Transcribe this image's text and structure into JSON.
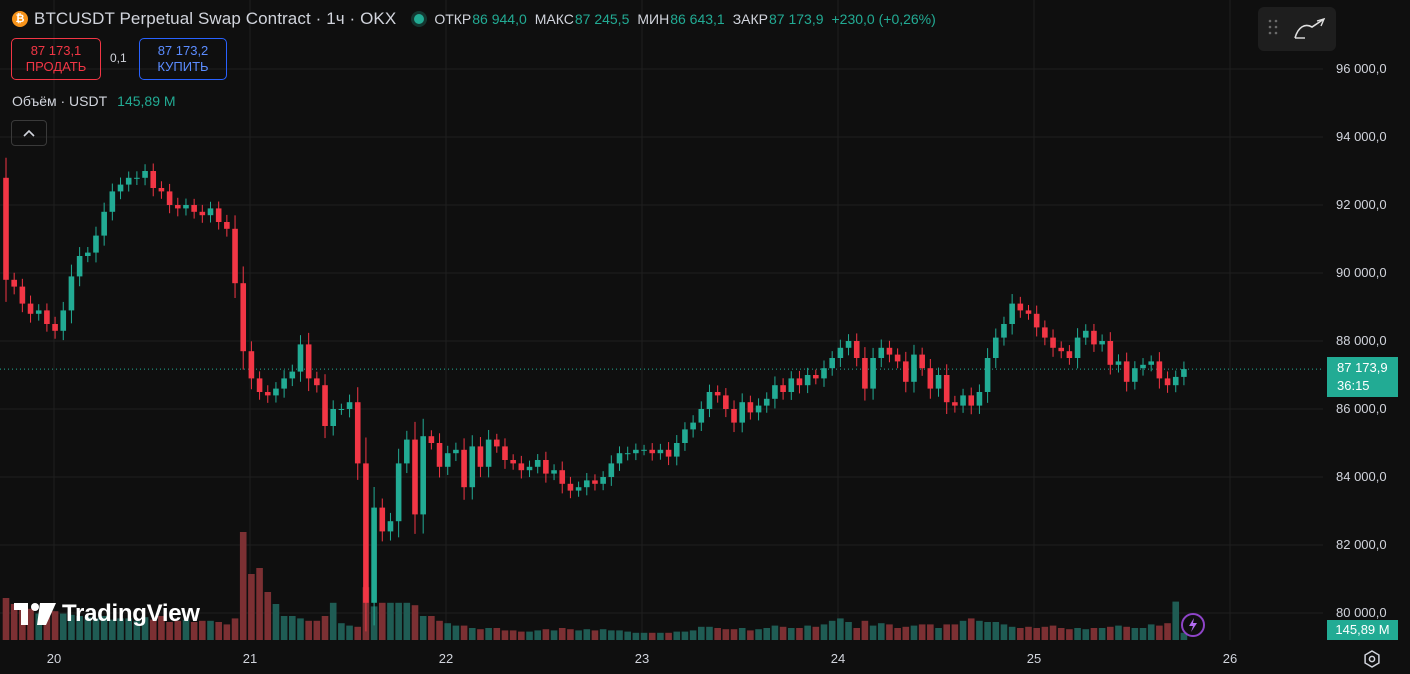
{
  "header": {
    "coin_glyph": "₿",
    "title": "BTCUSDT Perpetual Swap Contract · 1ч · OKX",
    "open_label": "ОТКР",
    "open_value": "86 944,0",
    "high_label": "МАКС",
    "high_value": "87 245,5",
    "low_label": "МИН",
    "low_value": "86 643,1",
    "close_label": "ЗАКР",
    "close_value": "87 173,9",
    "change": "+230,0 (+0,26%)"
  },
  "trade": {
    "sell_price": "87 173,1",
    "sell_label": "ПРОДАТЬ",
    "spread": "0,1",
    "buy_price": "87 173,2",
    "buy_label": "КУПИТЬ"
  },
  "volume_legend": {
    "label": "Объём · USDT",
    "value": "145,89 M"
  },
  "price_tag": {
    "price": "87 173,9",
    "countdown": "36:15"
  },
  "volume_tag": "145,89 M",
  "logo_text": "TradingView",
  "colors": {
    "up": "#22ab94",
    "down": "#f23645",
    "up_vol": "#1f5c54",
    "down_vol": "#7c3033",
    "background": "#0f0f0f",
    "grid": "#1f1f1f"
  },
  "icons": [
    "bitcoin-icon",
    "live-status-icon",
    "chevron-up-icon",
    "drag-handle-icon",
    "drawing-tool-icon",
    "flash-icon",
    "gear-icon",
    "tradingview-logo-icon"
  ],
  "chart_data": {
    "type": "candlestick",
    "symbol": "BTCUSDT",
    "interval": "1h",
    "ylim": [
      79000,
      96500
    ],
    "y_ticks": [
      "96 000,0",
      "94 000,0",
      "92 000,0",
      "90 000,0",
      "88 000,0",
      "86 000,0",
      "84 000,0",
      "82 000,0",
      "80 000,0"
    ],
    "x_ticks": [
      "20",
      "21",
      "22",
      "23",
      "24",
      "25",
      "26"
    ],
    "grid": true,
    "last_price": 87173.9,
    "closes": [
      89800,
      89600,
      89100,
      88800,
      88900,
      88500,
      88300,
      88900,
      89900,
      90500,
      90600,
      91100,
      91800,
      92400,
      92600,
      92800,
      92800,
      93000,
      92500,
      92400,
      92000,
      91900,
      92000,
      91800,
      91700,
      91900,
      91500,
      91300,
      89700,
      87700,
      86900,
      86500,
      86400,
      86600,
      86900,
      87100,
      87900,
      86900,
      86700,
      85500,
      86000,
      86000,
      86200,
      84400,
      80300,
      83100,
      82400,
      82700,
      84400,
      85100,
      82900,
      85200,
      85000,
      84300,
      84700,
      84800,
      83700,
      84900,
      84300,
      85100,
      84900,
      84500,
      84400,
      84200,
      84300,
      84500,
      84100,
      84200,
      83800,
      83600,
      83700,
      83900,
      83800,
      84000,
      84400,
      84700,
      84700,
      84800,
      84800,
      84700,
      84800,
      84600,
      85000,
      85400,
      85600,
      86000,
      86500,
      86400,
      86000,
      85600,
      86200,
      85900,
      86100,
      86300,
      86700,
      86500,
      86900,
      86700,
      87000,
      86900,
      87200,
      87500,
      87800,
      88000,
      87500,
      86600,
      87500,
      87800,
      87600,
      87400,
      86800,
      87600,
      87200,
      86600,
      87000,
      86200,
      86100,
      86400,
      86100,
      86500,
      87500,
      88100,
      88500,
      89100,
      88900,
      88800,
      88400,
      88100,
      87800,
      87700,
      87500,
      88100,
      88300,
      87900,
      88000,
      87300,
      87400,
      86800,
      87200,
      87300,
      87400,
      86900,
      86700,
      86944,
      87173.9
    ],
    "volumes": [
      3.5,
      3.0,
      2.8,
      2.6,
      2.2,
      2.0,
      2.4,
      2.2,
      2.1,
      2.0,
      1.9,
      1.8,
      2.0,
      1.7,
      1.8,
      1.8,
      1.6,
      1.9,
      1.7,
      2.0,
      1.5,
      1.6,
      1.7,
      1.5,
      1.6,
      1.6,
      1.5,
      1.3,
      1.8,
      9.0,
      5.5,
      6.0,
      4.0,
      3.0,
      2.0,
      2.0,
      1.8,
      1.6,
      1.6,
      2.0,
      3.1,
      1.4,
      1.2,
      1.1,
      4.4,
      2.8,
      3.1,
      3.1,
      3.1,
      3.1,
      2.9,
      2.0,
      2.0,
      1.6,
      1.4,
      1.2,
      1.2,
      1.0,
      0.9,
      1.0,
      1.0,
      0.8,
      0.8,
      0.7,
      0.7,
      0.8,
      0.9,
      0.8,
      1.0,
      0.9,
      0.8,
      0.9,
      0.8,
      0.9,
      0.8,
      0.8,
      0.7,
      0.6,
      0.6,
      0.6,
      0.6,
      0.6,
      0.7,
      0.7,
      0.8,
      1.1,
      1.1,
      1.0,
      0.9,
      0.9,
      1.0,
      0.8,
      0.9,
      1.0,
      1.2,
      1.1,
      1.0,
      1.0,
      1.2,
      1.1,
      1.3,
      1.6,
      1.8,
      1.5,
      1.0,
      1.6,
      1.2,
      1.4,
      1.3,
      1.0,
      1.1,
      1.2,
      1.3,
      1.3,
      1.0,
      1.3,
      1.3,
      1.6,
      1.8,
      1.6,
      1.5,
      1.5,
      1.3,
      1.1,
      1.0,
      1.1,
      1.0,
      1.1,
      1.2,
      1.0,
      0.9,
      1.0,
      0.9,
      1.0,
      1.0,
      1.1,
      1.2,
      1.1,
      1.0,
      1.0,
      1.3,
      1.2,
      1.4,
      3.2,
      0.6
    ]
  }
}
